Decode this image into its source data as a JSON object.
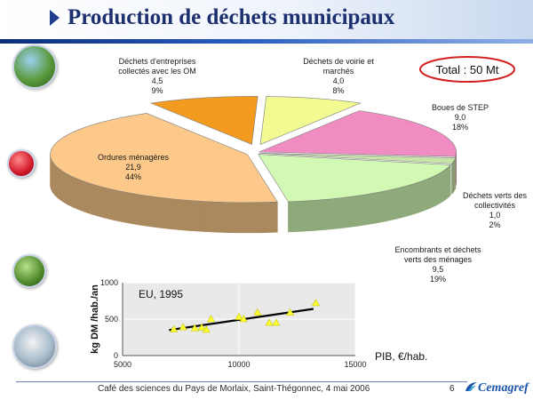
{
  "slide": {
    "title": "Production de déchets municipaux",
    "footer": "Café des sciences du Pays de Morlaix, Saint-Thégonnec, 4 mai 2006",
    "page_number": "6",
    "logo_text": "Cemagref",
    "total_label": "Total : 50 Mt"
  },
  "colors": {
    "title": "#1c2f6e",
    "total_oval": "#d22020",
    "trend_line": "#000000",
    "scatter_point": "#ffff33"
  },
  "chart_data": [
    {
      "type": "pie",
      "title": "",
      "slices": [
        {
          "label_lines": [
            "Déchets de voirie et",
            "marchés"
          ],
          "value": 4.0,
          "value_text": "4,0",
          "percent_text": "8%",
          "color": "#f1fb91"
        },
        {
          "label_lines": [
            "Boues de STEP"
          ],
          "value": 9.0,
          "value_text": "9,0",
          "percent_text": "18%",
          "color": "#f08cc1"
        },
        {
          "label_lines": [
            "Déchets verts des",
            "collectivités"
          ],
          "value": 1.0,
          "value_text": "1,0",
          "percent_text": "2%",
          "color": "#c8e3a8"
        },
        {
          "label_lines": [
            "Encombrants et déchets",
            "verts des ménages"
          ],
          "value": 9.5,
          "value_text": "9,5",
          "percent_text": "19%",
          "color": "#d1f9b4"
        },
        {
          "label_lines": [
            "Ordures ménagères"
          ],
          "value": 21.9,
          "value_text": "21,9",
          "percent_text": "44%",
          "color": "#fcc98a"
        },
        {
          "label_lines": [
            "Déchets d'entreprises",
            "collectés avec les OM"
          ],
          "value": 4.5,
          "value_text": "4,5",
          "percent_text": "9%",
          "color": "#f39a1f"
        }
      ]
    },
    {
      "type": "scatter",
      "title": "",
      "annotation": "EU, 1995",
      "xlabel": "PIB, €/hab.",
      "ylabel": "kg DM /hab./an",
      "xlim": [
        5000,
        15000
      ],
      "ylim": [
        0,
        1000
      ],
      "xticks": [
        "5000",
        "10000",
        "15000"
      ],
      "yticks": [
        "0",
        "500",
        "1000"
      ],
      "grid": true,
      "points": [
        {
          "x": 7200,
          "y": 360
        },
        {
          "x": 7600,
          "y": 390
        },
        {
          "x": 8100,
          "y": 375
        },
        {
          "x": 8400,
          "y": 385
        },
        {
          "x": 8600,
          "y": 355
        },
        {
          "x": 8800,
          "y": 500
        },
        {
          "x": 10000,
          "y": 530
        },
        {
          "x": 10200,
          "y": 500
        },
        {
          "x": 10800,
          "y": 590
        },
        {
          "x": 11300,
          "y": 450
        },
        {
          "x": 11600,
          "y": 450
        },
        {
          "x": 12200,
          "y": 590
        },
        {
          "x": 13300,
          "y": 720
        }
      ],
      "trend": [
        {
          "x": 7000,
          "y": 350
        },
        {
          "x": 13200,
          "y": 640
        }
      ]
    }
  ]
}
